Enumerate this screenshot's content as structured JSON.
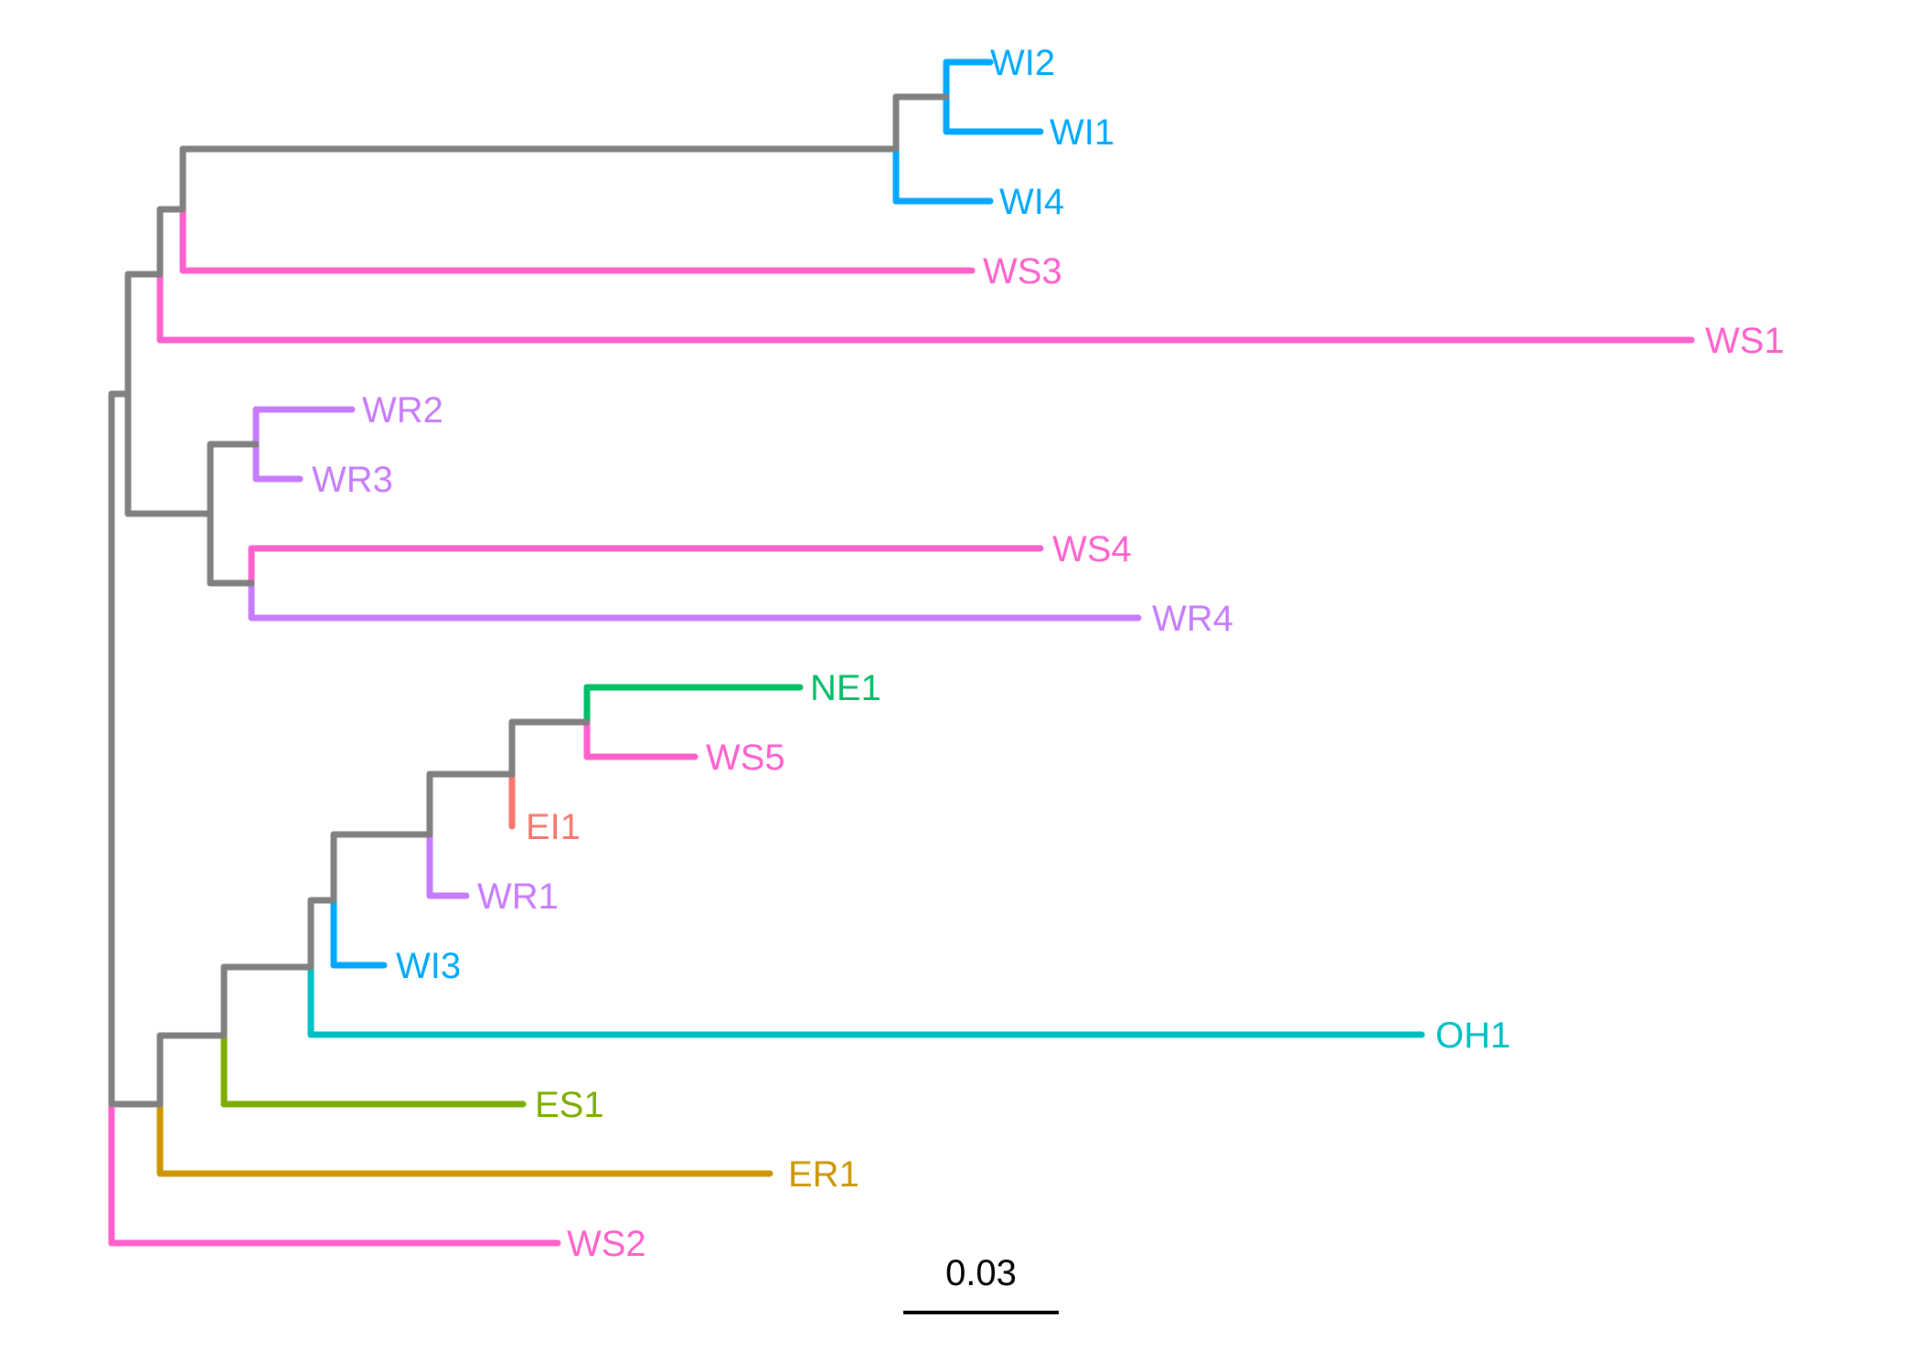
{
  "colors": {
    "internal": "#808080",
    "WI": "#00A9FF",
    "WS": "#FF61CC",
    "WR": "#C77CFF",
    "NE": "#00BE67",
    "EI": "#F8766D",
    "OH": "#00BFC4",
    "ES": "#7CAE00",
    "ER": "#CD9600",
    "scale": "#000000"
  },
  "tips": [
    {
      "label": "WI2",
      "group": "WI"
    },
    {
      "label": "WI1",
      "group": "WI"
    },
    {
      "label": "WI4",
      "group": "WI"
    },
    {
      "label": "WS3",
      "group": "WS"
    },
    {
      "label": "WS1",
      "group": "WS"
    },
    {
      "label": "WR2",
      "group": "WR"
    },
    {
      "label": "WR3",
      "group": "WR"
    },
    {
      "label": "WS4",
      "group": "WS"
    },
    {
      "label": "WR4",
      "group": "WR"
    },
    {
      "label": "NE1",
      "group": "NE"
    },
    {
      "label": "WS5",
      "group": "WS"
    },
    {
      "label": "EI1",
      "group": "EI"
    },
    {
      "label": "WR1",
      "group": "WR"
    },
    {
      "label": "WI3",
      "group": "WI"
    },
    {
      "label": "OH1",
      "group": "OH"
    },
    {
      "label": "ES1",
      "group": "ES"
    },
    {
      "label": "ER1",
      "group": "ER"
    },
    {
      "label": "WS2",
      "group": "WS"
    }
  ],
  "scale_bar": {
    "label": "0.03"
  }
}
